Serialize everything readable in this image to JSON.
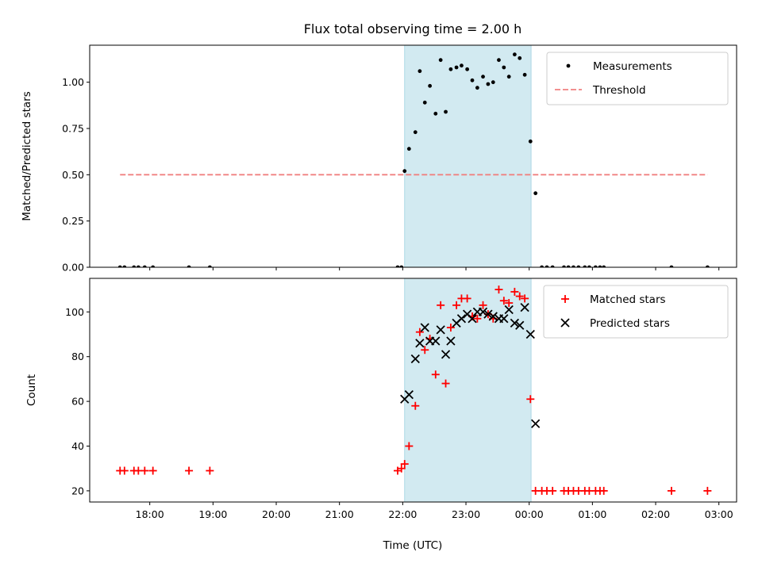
{
  "chart_data": {
    "title": "Flux total observing time = 2.00 h",
    "xlabel": "Time (UTC)",
    "x_unit": "hours since 00:00 UTC of first day",
    "xlim": [
      17.05,
      27.28
    ],
    "xticks": [
      18,
      19,
      20,
      21,
      22,
      23,
      24,
      25,
      26,
      27
    ],
    "xtick_labels": [
      "18:00",
      "19:00",
      "20:00",
      "21:00",
      "22:00",
      "23:00",
      "00:00",
      "01:00",
      "02:00",
      "03:00"
    ],
    "highlight_span": [
      22.03,
      24.03
    ],
    "highlight_color": "#add8e6",
    "panels": [
      {
        "type": "scatter",
        "ylabel": "Matched/Predicted stars",
        "ylim": [
          0,
          1.2
        ],
        "yticks": [
          0,
          0.25,
          0.5,
          0.75,
          1.0
        ],
        "ytick_labels": [
          "0.00",
          "0.25",
          "0.50",
          "0.75",
          "1.00"
        ],
        "legend_position": "top-right",
        "series": [
          {
            "name": "Measurements",
            "marker": "dot",
            "color": "#000000",
            "points": [
              [
                17.53,
                0
              ],
              [
                17.6,
                0
              ],
              [
                17.75,
                0
              ],
              [
                17.82,
                0
              ],
              [
                17.92,
                0
              ],
              [
                18.05,
                0
              ],
              [
                18.62,
                0
              ],
              [
                18.95,
                0
              ],
              [
                21.92,
                0
              ],
              [
                21.98,
                0
              ],
              [
                22.03,
                0.52
              ],
              [
                22.1,
                0.64
              ],
              [
                22.2,
                0.73
              ],
              [
                22.27,
                1.06
              ],
              [
                22.35,
                0.89
              ],
              [
                22.43,
                0.98
              ],
              [
                22.52,
                0.83
              ],
              [
                22.6,
                1.12
              ],
              [
                22.68,
                0.84
              ],
              [
                22.76,
                1.07
              ],
              [
                22.85,
                1.08
              ],
              [
                22.93,
                1.09
              ],
              [
                23.02,
                1.07
              ],
              [
                23.1,
                1.01
              ],
              [
                23.18,
                0.97
              ],
              [
                23.27,
                1.03
              ],
              [
                23.35,
                0.99
              ],
              [
                23.43,
                1.0
              ],
              [
                23.52,
                1.12
              ],
              [
                23.6,
                1.08
              ],
              [
                23.68,
                1.03
              ],
              [
                23.77,
                1.15
              ],
              [
                23.85,
                1.13
              ],
              [
                23.93,
                1.04
              ],
              [
                24.02,
                0.68
              ],
              [
                24.1,
                0.4
              ],
              [
                24.2,
                0
              ],
              [
                24.28,
                0
              ],
              [
                24.37,
                0
              ],
              [
                24.55,
                0
              ],
              [
                24.62,
                0
              ],
              [
                24.7,
                0
              ],
              [
                24.78,
                0
              ],
              [
                24.88,
                0
              ],
              [
                24.95,
                0
              ],
              [
                25.05,
                0
              ],
              [
                25.12,
                0
              ],
              [
                25.18,
                0
              ],
              [
                26.25,
                0
              ],
              [
                26.82,
                0
              ]
            ]
          },
          {
            "name": "Threshold",
            "style": "dashed",
            "color": "#f08080",
            "x": [
              17.53,
              26.82
            ],
            "y": [
              0.5,
              0.5
            ]
          }
        ]
      },
      {
        "type": "scatter",
        "ylabel": "Count",
        "ylim": [
          15,
          115
        ],
        "yticks": [
          20,
          40,
          60,
          80,
          100
        ],
        "ytick_labels": [
          "20",
          "40",
          "60",
          "80",
          "100"
        ],
        "legend_position": "top-right",
        "series": [
          {
            "name": "Matched stars",
            "marker": "plus",
            "color": "#ff0000",
            "points": [
              [
                17.53,
                29
              ],
              [
                17.6,
                29
              ],
              [
                17.75,
                29
              ],
              [
                17.82,
                29
              ],
              [
                17.92,
                29
              ],
              [
                18.05,
                29
              ],
              [
                18.62,
                29
              ],
              [
                18.95,
                29
              ],
              [
                21.92,
                29
              ],
              [
                21.98,
                30
              ],
              [
                22.03,
                32
              ],
              [
                22.1,
                40
              ],
              [
                22.2,
                58
              ],
              [
                22.27,
                91
              ],
              [
                22.35,
                83
              ],
              [
                22.43,
                88
              ],
              [
                22.52,
                72
              ],
              [
                22.6,
                103
              ],
              [
                22.68,
                68
              ],
              [
                22.76,
                93
              ],
              [
                22.85,
                103
              ],
              [
                22.93,
                106
              ],
              [
                23.02,
                106
              ],
              [
                23.1,
                98
              ],
              [
                23.18,
                97
              ],
              [
                23.27,
                103
              ],
              [
                23.35,
                99
              ],
              [
                23.43,
                97
              ],
              [
                23.52,
                110
              ],
              [
                23.6,
                105
              ],
              [
                23.68,
                104
              ],
              [
                23.77,
                109
              ],
              [
                23.85,
                107
              ],
              [
                23.93,
                106
              ],
              [
                24.02,
                61
              ],
              [
                24.1,
                20
              ],
              [
                24.2,
                20
              ],
              [
                24.28,
                20
              ],
              [
                24.37,
                20
              ],
              [
                24.55,
                20
              ],
              [
                24.62,
                20
              ],
              [
                24.7,
                20
              ],
              [
                24.78,
                20
              ],
              [
                24.88,
                20
              ],
              [
                24.95,
                20
              ],
              [
                25.05,
                20
              ],
              [
                25.12,
                20
              ],
              [
                25.18,
                20
              ],
              [
                26.25,
                20
              ],
              [
                26.82,
                20
              ]
            ]
          },
          {
            "name": "Predicted stars",
            "marker": "x",
            "color": "#000000",
            "points": [
              [
                22.03,
                61
              ],
              [
                22.1,
                63
              ],
              [
                22.2,
                79
              ],
              [
                22.27,
                86
              ],
              [
                22.35,
                93
              ],
              [
                22.43,
                87
              ],
              [
                22.52,
                87
              ],
              [
                22.6,
                92
              ],
              [
                22.68,
                81
              ],
              [
                22.76,
                87
              ],
              [
                22.85,
                95
              ],
              [
                22.93,
                97
              ],
              [
                23.02,
                99
              ],
              [
                23.1,
                97
              ],
              [
                23.18,
                100
              ],
              [
                23.27,
                100
              ],
              [
                23.35,
                99
              ],
              [
                23.43,
                98
              ],
              [
                23.52,
                97
              ],
              [
                23.6,
                97
              ],
              [
                23.68,
                101
              ],
              [
                23.77,
                95
              ],
              [
                23.85,
                94
              ],
              [
                23.93,
                102
              ],
              [
                24.02,
                90
              ],
              [
                24.1,
                50
              ]
            ]
          }
        ]
      }
    ]
  }
}
